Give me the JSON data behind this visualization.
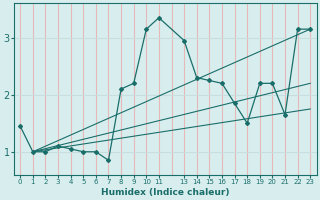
{
  "bg_color": "#d8eeee",
  "grid_color_v": "#e8b8b8",
  "grid_color_h": "#c8dede",
  "line_color": "#1a6e6a",
  "xlabel": "Humidex (Indice chaleur)",
  "xlim": [
    -0.5,
    23.5
  ],
  "ylim": [
    0.6,
    3.6
  ],
  "yticks": [
    1,
    2,
    3
  ],
  "xtick_vals": [
    0,
    1,
    2,
    3,
    4,
    5,
    6,
    7,
    8,
    9,
    10,
    11,
    13,
    14,
    15,
    16,
    17,
    18,
    19,
    20,
    21,
    22,
    23
  ],
  "xtick_labels": [
    "0",
    "1",
    "2",
    "3",
    "4",
    "5",
    "6",
    "7",
    "8",
    "9",
    "10",
    "11",
    "13",
    "14",
    "15",
    "16",
    "17",
    "18",
    "19",
    "20",
    "21",
    "22",
    "23"
  ],
  "series": [
    {
      "x": [
        0,
        1,
        2,
        3,
        4,
        5,
        6,
        7,
        8,
        9,
        10,
        11,
        13,
        14,
        15,
        16,
        17,
        18,
        19,
        20,
        21,
        22,
        23
      ],
      "y": [
        1.45,
        1.0,
        1.0,
        1.1,
        1.05,
        1.0,
        1.0,
        0.85,
        2.1,
        2.2,
        3.15,
        3.35,
        2.95,
        2.3,
        2.25,
        2.2,
        1.85,
        1.5,
        2.2,
        2.2,
        1.65,
        3.15,
        3.15
      ]
    },
    {
      "x": [
        1,
        23
      ],
      "y": [
        1.0,
        3.15
      ]
    },
    {
      "x": [
        1,
        23
      ],
      "y": [
        1.0,
        2.2
      ]
    },
    {
      "x": [
        1,
        23
      ],
      "y": [
        1.0,
        1.75
      ]
    }
  ]
}
